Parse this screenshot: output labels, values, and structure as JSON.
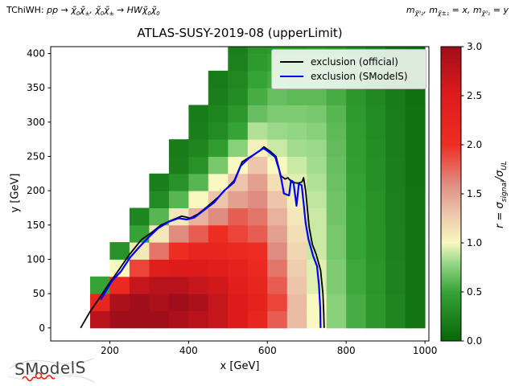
{
  "header": {
    "process_prefix": "TChiWH: ",
    "process_math": "pp → χ̃${0}{2}χ̃${±}{1}, χ̃${0}{2}χ̃${±}{1} → HWχ̃${0}{1}χ̃${0}{1}",
    "masses_label": "m_{χ̃⁰₂}, m_{χ̃±₁} = x, m_{χ̃⁰₁} = y"
  },
  "title": "ATLAS-SUSY-2019-08 (upperLimit)",
  "legend": [
    {
      "label": "exclusion (official)",
      "color": "#000000"
    },
    {
      "label": "exclusion (SModelS)",
      "color": "#0000ff"
    }
  ],
  "logo": {
    "text": "SModelS",
    "accent_color": "#dd2010"
  },
  "chart_data": {
    "type": "heatmap",
    "title": "ATLAS-SUSY-2019-08 (upperLimit)",
    "xlabel": "x [GeV]",
    "ylabel": "y [GeV]",
    "xlim": [
      50,
      1010
    ],
    "ylim": [
      -19,
      410
    ],
    "xticks": [
      200,
      400,
      600,
      800,
      1000
    ],
    "yticks": [
      0,
      50,
      100,
      150,
      200,
      250,
      300,
      350,
      400
    ],
    "grid_on": false,
    "legend_position": "upper right",
    "colorbar": {
      "label": "r = σ_{signal}/σ_{UL}",
      "min": 0.0,
      "max": 3.0,
      "ticks": [
        "0.0",
        "0.5",
        "1.0",
        "1.5",
        "2.0",
        "2.5",
        "3.0"
      ],
      "stops": [
        [
          0.0,
          "#076607"
        ],
        [
          0.5,
          "#36a336"
        ],
        [
          0.8,
          "#99d989"
        ],
        [
          1.0,
          "#f8f8c0"
        ],
        [
          1.3,
          "#edc5ab"
        ],
        [
          1.6,
          "#e08d81"
        ],
        [
          2.0,
          "#ee2d22"
        ],
        [
          2.5,
          "#dd1b1b"
        ],
        [
          3.0,
          "#a00e1b"
        ]
      ]
    },
    "grid": {
      "x_edges": [
        150,
        200,
        250,
        300,
        350,
        400,
        450,
        500,
        550,
        600,
        650,
        700,
        750,
        800,
        850,
        900,
        950,
        1000
      ],
      "y_edges": [
        0,
        25,
        50,
        75,
        100,
        125,
        150,
        175,
        200,
        225,
        250,
        275,
        300,
        325,
        350,
        375,
        400,
        412
      ],
      "values": [
        [
          2.8,
          3.0,
          3.0,
          3.0,
          2.9,
          2.8,
          2.7,
          2.5,
          2.2,
          1.8,
          1.35,
          1.0,
          0.75,
          0.55,
          0.4,
          0.25,
          0.12
        ],
        [
          2.2,
          2.9,
          3.0,
          2.9,
          3.0,
          2.9,
          2.7,
          2.5,
          2.3,
          1.9,
          1.35,
          1.0,
          0.75,
          0.55,
          0.4,
          0.25,
          0.12
        ],
        [
          0.5,
          2.1,
          2.7,
          2.8,
          2.8,
          2.7,
          2.6,
          2.4,
          2.2,
          1.8,
          1.3,
          0.95,
          0.72,
          0.52,
          0.38,
          0.24,
          0.12
        ],
        [
          null,
          1.0,
          1.9,
          2.4,
          2.5,
          2.5,
          2.4,
          2.3,
          2.1,
          1.7,
          1.25,
          0.95,
          0.72,
          0.52,
          0.38,
          0.24,
          0.12
        ],
        [
          null,
          0.35,
          1.1,
          1.7,
          2.0,
          2.2,
          2.2,
          2.1,
          2.0,
          1.6,
          1.2,
          0.9,
          0.7,
          0.5,
          0.36,
          0.23,
          0.11
        ],
        [
          null,
          null,
          0.5,
          1.1,
          1.6,
          1.8,
          2.0,
          1.9,
          1.8,
          1.5,
          1.15,
          0.9,
          0.7,
          0.5,
          0.36,
          0.23,
          0.11
        ],
        [
          null,
          null,
          0.25,
          0.6,
          1.1,
          1.4,
          1.6,
          1.8,
          1.7,
          1.4,
          1.1,
          0.9,
          0.68,
          0.5,
          0.35,
          0.22,
          0.11
        ],
        [
          null,
          null,
          null,
          0.3,
          0.6,
          1.0,
          1.3,
          1.5,
          1.6,
          1.3,
          1.05,
          0.88,
          0.68,
          0.48,
          0.35,
          0.22,
          0.11
        ],
        [
          null,
          null,
          null,
          0.2,
          0.35,
          0.6,
          1.0,
          1.3,
          1.5,
          1.15,
          0.95,
          0.85,
          0.66,
          0.48,
          0.34,
          0.21,
          0.1
        ],
        [
          null,
          null,
          null,
          null,
          0.2,
          0.35,
          0.7,
          1.0,
          1.3,
          1.0,
          0.9,
          0.82,
          0.65,
          0.46,
          0.33,
          0.21,
          0.1
        ],
        [
          null,
          null,
          null,
          null,
          0.18,
          0.25,
          0.45,
          0.75,
          1.05,
          0.9,
          0.82,
          0.8,
          0.64,
          0.45,
          0.32,
          0.2,
          0.1
        ],
        [
          null,
          null,
          null,
          null,
          null,
          0.2,
          0.3,
          0.5,
          0.85,
          0.8,
          0.78,
          0.75,
          0.62,
          0.44,
          0.3,
          0.2,
          0.1
        ],
        [
          null,
          null,
          null,
          null,
          null,
          0.18,
          0.25,
          0.4,
          0.65,
          0.72,
          0.72,
          0.7,
          0.6,
          0.42,
          0.3,
          0.19,
          0.1
        ],
        [
          null,
          null,
          null,
          null,
          null,
          null,
          0.2,
          0.3,
          0.55,
          0.65,
          0.62,
          0.62,
          0.55,
          0.4,
          0.28,
          0.18,
          0.09
        ],
        [
          null,
          null,
          null,
          null,
          null,
          null,
          0.18,
          0.28,
          0.5,
          0.55,
          0.52,
          0.55,
          0.5,
          0.38,
          0.27,
          0.17,
          0.09
        ],
        [
          null,
          null,
          null,
          null,
          null,
          null,
          null,
          0.22,
          0.42,
          0.48,
          0.46,
          0.5,
          0.46,
          0.36,
          0.26,
          0.16,
          0.08
        ],
        [
          null,
          null,
          null,
          null,
          null,
          null,
          null,
          0.2,
          0.38,
          0.42,
          0.42,
          0.45,
          0.42,
          0.34,
          0.25,
          0.15,
          0.08
        ]
      ]
    },
    "series": [
      {
        "name": "exclusion (official)",
        "color": "#000000",
        "width": 1.8,
        "points": [
          [
            126,
            0
          ],
          [
            150,
            24
          ],
          [
            172,
            42
          ],
          [
            195,
            62
          ],
          [
            220,
            82
          ],
          [
            250,
            107
          ],
          [
            281,
            129
          ],
          [
            306,
            139
          ],
          [
            330,
            150
          ],
          [
            357,
            157
          ],
          [
            383,
            163
          ],
          [
            404,
            160
          ],
          [
            424,
            166
          ],
          [
            450,
            178
          ],
          [
            478,
            192
          ],
          [
            516,
            215
          ],
          [
            536,
            242
          ],
          [
            558,
            250
          ],
          [
            578,
            257
          ],
          [
            591,
            264
          ],
          [
            608,
            257
          ],
          [
            622,
            250
          ],
          [
            634,
            222
          ],
          [
            645,
            217
          ],
          [
            652,
            219
          ],
          [
            663,
            212
          ],
          [
            678,
            211
          ],
          [
            688,
            213
          ],
          [
            692,
            219
          ],
          [
            697,
            200
          ],
          [
            701,
            177
          ],
          [
            706,
            147
          ],
          [
            714,
            122
          ],
          [
            724,
            107
          ],
          [
            735,
            84
          ],
          [
            741,
            50
          ],
          [
            743,
            22
          ],
          [
            744,
            0
          ]
        ]
      },
      {
        "name": "exclusion (SModelS)",
        "color": "#0000ff",
        "width": 2.2,
        "points": [
          [
            177,
            41
          ],
          [
            205,
            68
          ],
          [
            228,
            82
          ],
          [
            252,
            103
          ],
          [
            275,
            118
          ],
          [
            300,
            133
          ],
          [
            322,
            145
          ],
          [
            350,
            155
          ],
          [
            375,
            160
          ],
          [
            395,
            158
          ],
          [
            415,
            161
          ],
          [
            440,
            172
          ],
          [
            465,
            183
          ],
          [
            490,
            200
          ],
          [
            515,
            212
          ],
          [
            532,
            236
          ],
          [
            552,
            247
          ],
          [
            572,
            255
          ],
          [
            590,
            262
          ],
          [
            605,
            256
          ],
          [
            620,
            249
          ],
          [
            630,
            230
          ],
          [
            636,
            215
          ],
          [
            642,
            196
          ],
          [
            655,
            193
          ],
          [
            660,
            215
          ],
          [
            666,
            213
          ],
          [
            670,
            196
          ],
          [
            674,
            178
          ],
          [
            680,
            210
          ],
          [
            687,
            208
          ],
          [
            692,
            182
          ],
          [
            697,
            153
          ],
          [
            704,
            130
          ],
          [
            716,
            105
          ],
          [
            726,
            90
          ],
          [
            731,
            62
          ],
          [
            734,
            30
          ],
          [
            735,
            0
          ]
        ]
      }
    ]
  }
}
